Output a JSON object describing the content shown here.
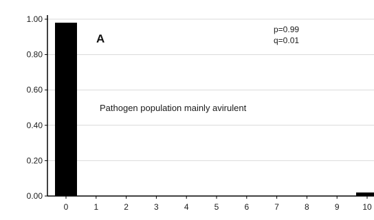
{
  "chart_data": {
    "type": "bar",
    "categories": [
      "0",
      "1",
      "2",
      "3",
      "4",
      "5",
      "6",
      "7",
      "8",
      "9",
      "10"
    ],
    "values": [
      0.98,
      0,
      0,
      0,
      0,
      0,
      0,
      0,
      0,
      0,
      0.02
    ],
    "ylim": [
      0,
      1
    ],
    "yticks": [
      "0.00",
      "0.20",
      "0.40",
      "0.60",
      "0.80",
      "1.00"
    ],
    "grid": true,
    "panel_label": "A",
    "annotations": {
      "p": "p=0.99",
      "q": "q=0.01",
      "note": "Pathogen population mainly avirulent"
    },
    "colors": {
      "bar": "#000000",
      "grid": "#d9d9d9",
      "axis": "#000000"
    }
  }
}
